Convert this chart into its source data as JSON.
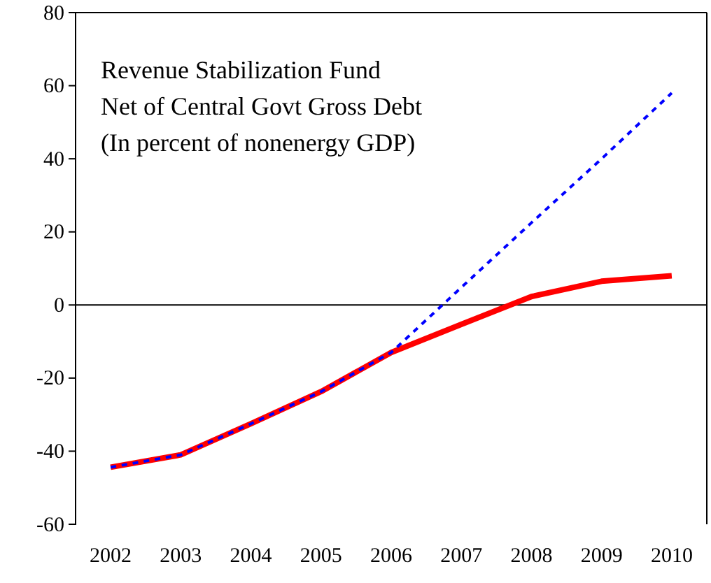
{
  "chart_data": {
    "type": "line",
    "title": "Revenue Stabilization Fund",
    "subtitle": "Net of Central Govt Gross Debt",
    "annotations": [
      "(In percent of nonenergy GDP)"
    ],
    "categories": [
      "2002",
      "2003",
      "2004",
      "2005",
      "2006",
      "2007",
      "2008",
      "2009",
      "2010"
    ],
    "series": [
      {
        "color": "#0000ff",
        "line_style": "dotted",
        "values": [
          -44.4,
          -41,
          -32.5,
          -23.7,
          -13,
          4.8,
          22.5,
          40,
          58
        ]
      },
      {
        "color": "#ff0000",
        "line_style": "solid",
        "values": [
          -44.4,
          -41,
          -32.5,
          -23.7,
          -13,
          -5.3,
          2.3,
          6.5,
          8
        ]
      }
    ],
    "ylim": [
      -60,
      80
    ],
    "yticks": [
      -60,
      -40,
      -20,
      0,
      20,
      40,
      60,
      80
    ],
    "ref_lines": [
      {
        "axis": "y",
        "value": 0,
        "color": "#000000"
      }
    ],
    "grid": false,
    "marker": "none"
  }
}
